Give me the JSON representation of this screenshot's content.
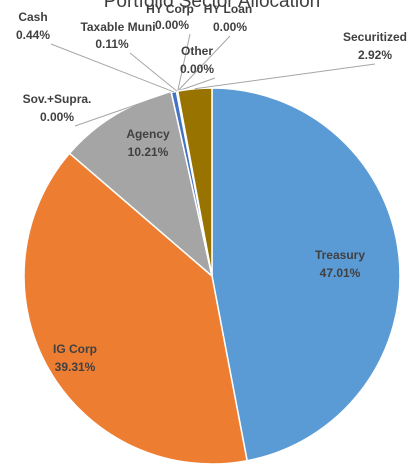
{
  "chart_data": {
    "type": "pie",
    "title": "Portfolio Sector Allocation",
    "categories": [
      "Treasury",
      "IG Corp",
      "Agency",
      "Sov.+Supra.",
      "Cash",
      "Taxable Muni",
      "HY Corp",
      "HY Loan",
      "Other",
      "Securitized"
    ],
    "values": [
      47.01,
      39.31,
      10.21,
      0.0,
      0.44,
      0.11,
      0.0,
      0.0,
      0.0,
      2.92
    ],
    "value_labels": [
      "47.01%",
      "39.31%",
      "10.21%",
      "0.00%",
      "0.44%",
      "0.11%",
      "0.00%",
      "0.00%",
      "0.00%",
      "2.92%"
    ],
    "colors": [
      "#5b9bd5",
      "#ed7d31",
      "#a5a5a5",
      "#ffc000",
      "#4472c4",
      "#70ad47",
      "#264478",
      "#9e480e",
      "#636363",
      "#997300"
    ]
  }
}
